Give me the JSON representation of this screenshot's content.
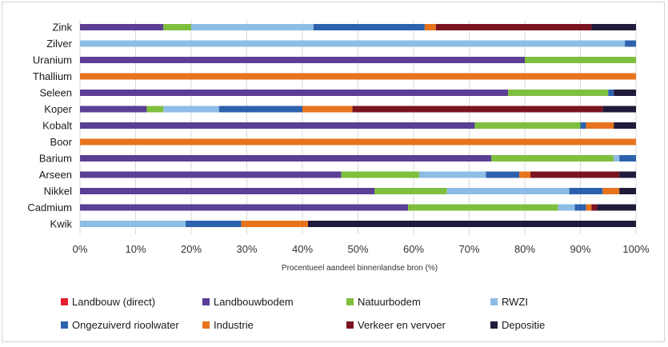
{
  "chart_data": {
    "type": "bar",
    "stacked": true,
    "orientation": "horizontal",
    "xlabel": "Procentueel aandeel binnenlandse bron (%)",
    "ylabel": "",
    "xlim": [
      0,
      100
    ],
    "x_ticks": [
      "0%",
      "10%",
      "20%",
      "30%",
      "40%",
      "50%",
      "60%",
      "70%",
      "80%",
      "90%",
      "100%"
    ],
    "grid": "vertical",
    "legend_position": "bottom",
    "categories": [
      "Zink",
      "Zilver",
      "Uranium",
      "Thallium",
      "Seleen",
      "Koper",
      "Kobalt",
      "Boor",
      "Barium",
      "Arseen",
      "Nikkel",
      "Cadmium",
      "Kwik"
    ],
    "series": [
      {
        "name": "Landbouw (direct)",
        "color": "#e3202f",
        "values": [
          0,
          0,
          0,
          0,
          0,
          0,
          0,
          0,
          0,
          0,
          0,
          0,
          0
        ]
      },
      {
        "name": "Landbouwbodem",
        "color": "#5b3f94",
        "values": [
          15,
          0,
          80,
          0,
          77,
          12,
          71,
          0,
          74,
          47,
          53,
          59,
          0
        ]
      },
      {
        "name": "Natuurbodem",
        "color": "#7fbf3e",
        "values": [
          5,
          0,
          20,
          0,
          18,
          3,
          19,
          0,
          22,
          14,
          13,
          27,
          0
        ]
      },
      {
        "name": "RWZI",
        "color": "#8dbde6",
        "values": [
          22,
          98,
          0,
          0,
          0,
          10,
          0,
          0,
          1,
          12,
          22,
          3,
          19
        ]
      },
      {
        "name": "Ongezuiverd rioolwater",
        "color": "#2c62ad",
        "values": [
          20,
          2,
          0,
          0,
          1,
          15,
          1,
          0,
          3,
          6,
          6,
          2,
          10
        ]
      },
      {
        "name": "Industrie",
        "color": "#e8731d",
        "values": [
          2,
          0,
          0,
          100,
          0,
          9,
          5,
          100,
          0,
          2,
          3,
          1,
          12
        ]
      },
      {
        "name": "Verkeer en vervoer",
        "color": "#7b1420",
        "values": [
          28,
          0,
          0,
          0,
          0,
          45,
          0,
          0,
          0,
          16,
          0,
          1,
          0
        ]
      },
      {
        "name": "Depositie",
        "color": "#211a3a",
        "values": [
          8,
          0,
          0,
          0,
          4,
          6,
          4,
          0,
          0,
          3,
          3,
          7,
          59
        ]
      }
    ]
  }
}
